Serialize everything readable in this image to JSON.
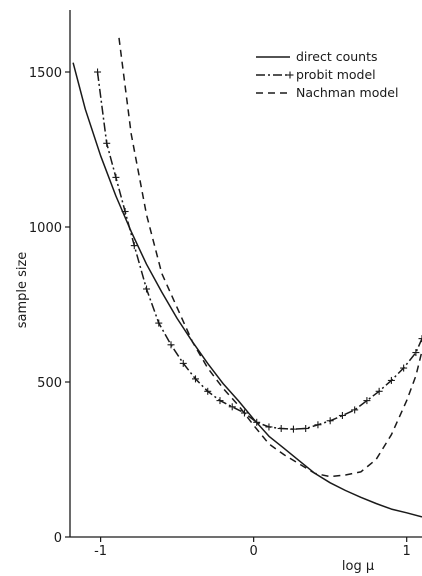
{
  "chart_data": {
    "type": "line",
    "title": "",
    "xlabel": "log μ",
    "ylabel": "sample size",
    "xlim": [
      -1.2,
      1.1
    ],
    "ylim": [
      0,
      1700
    ],
    "x_ticks": [
      {
        "value": -1,
        "label": "-1"
      },
      {
        "value": 0,
        "label": "0"
      },
      {
        "value": 1,
        "label": "1"
      }
    ],
    "y_ticks": [
      {
        "value": 0,
        "label": "0"
      },
      {
        "value": 500,
        "label": "500"
      },
      {
        "value": 1000,
        "label": "1000"
      },
      {
        "value": 1500,
        "label": "1500"
      }
    ],
    "grid": false,
    "legend_position": "top-right",
    "series": [
      {
        "name": "direct counts",
        "style": "solid",
        "points": [
          [
            -1.18,
            1530
          ],
          [
            -1.1,
            1380
          ],
          [
            -1.0,
            1230
          ],
          [
            -0.9,
            1100
          ],
          [
            -0.8,
            985
          ],
          [
            -0.7,
            880
          ],
          [
            -0.6,
            790
          ],
          [
            -0.5,
            705
          ],
          [
            -0.4,
            630
          ],
          [
            -0.3,
            560
          ],
          [
            -0.2,
            495
          ],
          [
            -0.1,
            440
          ],
          [
            0.0,
            380
          ],
          [
            0.1,
            325
          ],
          [
            0.2,
            285
          ],
          [
            0.3,
            245
          ],
          [
            0.4,
            205
          ],
          [
            0.5,
            175
          ],
          [
            0.6,
            150
          ],
          [
            0.7,
            128
          ],
          [
            0.8,
            108
          ],
          [
            0.9,
            90
          ],
          [
            1.0,
            78
          ],
          [
            1.1,
            65
          ]
        ]
      },
      {
        "name": "probit model",
        "style": "dash-dot-plus",
        "points": [
          [
            -1.02,
            1500
          ],
          [
            -0.96,
            1270
          ],
          [
            -0.9,
            1160
          ],
          [
            -0.84,
            1050
          ],
          [
            -0.78,
            940
          ],
          [
            -0.7,
            800
          ],
          [
            -0.62,
            690
          ],
          [
            -0.54,
            620
          ],
          [
            -0.46,
            560
          ],
          [
            -0.38,
            510
          ],
          [
            -0.3,
            470
          ],
          [
            -0.22,
            440
          ],
          [
            -0.14,
            420
          ],
          [
            -0.06,
            400
          ],
          [
            0.02,
            370
          ],
          [
            0.1,
            355
          ],
          [
            0.18,
            350
          ],
          [
            0.26,
            348
          ],
          [
            0.34,
            350
          ],
          [
            0.42,
            362
          ],
          [
            0.5,
            375
          ],
          [
            0.58,
            392
          ],
          [
            0.66,
            410
          ],
          [
            0.74,
            440
          ],
          [
            0.82,
            470
          ],
          [
            0.9,
            505
          ],
          [
            0.98,
            545
          ],
          [
            1.06,
            595
          ],
          [
            1.1,
            640
          ]
        ]
      },
      {
        "name": "Nachman model",
        "style": "dashed",
        "points": [
          [
            -0.88,
            1610
          ],
          [
            -0.8,
            1300
          ],
          [
            -0.7,
            1040
          ],
          [
            -0.6,
            850
          ],
          [
            -0.5,
            740
          ],
          [
            -0.4,
            630
          ],
          [
            -0.3,
            545
          ],
          [
            -0.2,
            480
          ],
          [
            -0.1,
            425
          ],
          [
            0.0,
            360
          ],
          [
            0.1,
            300
          ],
          [
            0.2,
            265
          ],
          [
            0.3,
            235
          ],
          [
            0.4,
            205
          ],
          [
            0.5,
            195
          ],
          [
            0.6,
            200
          ],
          [
            0.7,
            210
          ],
          [
            0.8,
            250
          ],
          [
            0.9,
            330
          ],
          [
            1.0,
            440
          ],
          [
            1.06,
            520
          ],
          [
            1.1,
            600
          ]
        ]
      }
    ]
  }
}
